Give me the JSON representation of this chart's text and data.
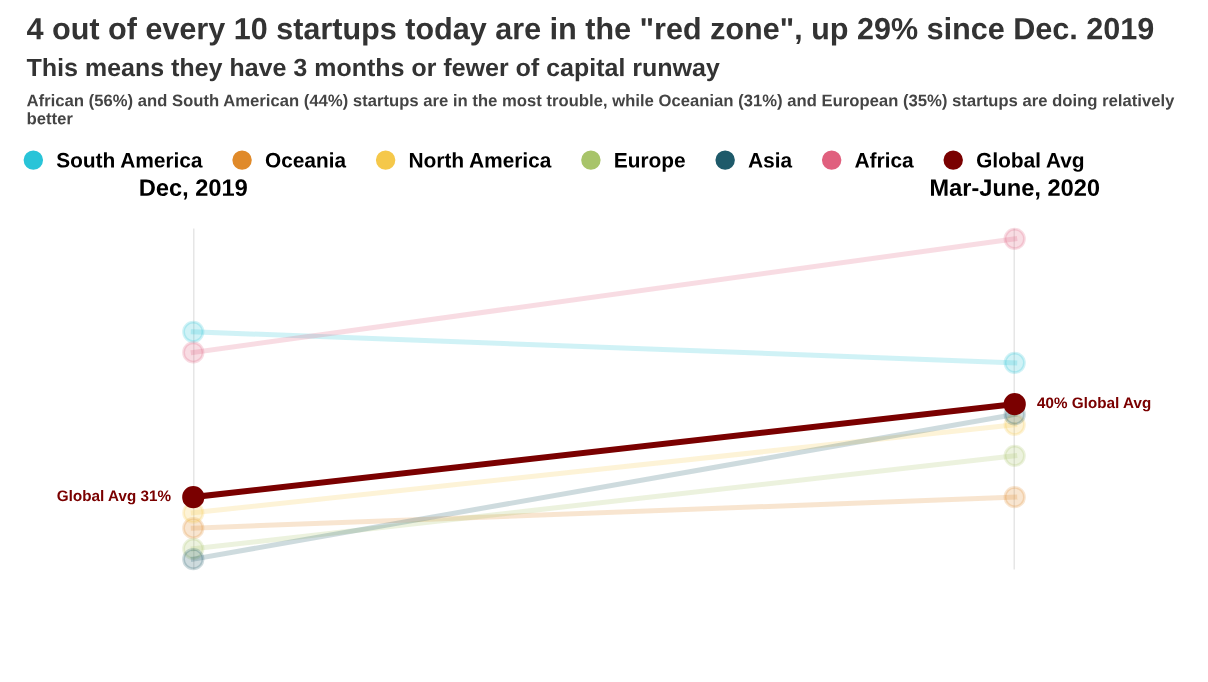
{
  "chart_data": {
    "type": "line",
    "title": "4 out of every 10 startups today are in the \"red zone\", up 29% since Dec. 2019",
    "subtitle": "This means they have 3 months or fewer of capital runway",
    "annotations": [
      "African (56%) and South American (44%) startups are in the most trouble, while Oceanian (31%) and European (35%) startups are doing relatively better"
    ],
    "categories": [
      "Dec, 2019",
      "Mar-June, 2020"
    ],
    "ylim": [
      24,
      57
    ],
    "grid": "x",
    "legend": "top left",
    "marker": "circle",
    "tick_labels": "x",
    "series": [
      {
        "name": "South America",
        "color": "#29c4d8",
        "values": [
          47,
          44
        ]
      },
      {
        "name": "Oceania",
        "color": "#e08a2a",
        "values": [
          28,
          31
        ]
      },
      {
        "name": "North America",
        "color": "#f5c84a",
        "values": [
          29.5,
          38
        ]
      },
      {
        "name": "Europe",
        "color": "#a8c46a",
        "values": [
          26,
          35
        ]
      },
      {
        "name": "Asia",
        "color": "#1e5a6a",
        "values": [
          25,
          39
        ]
      },
      {
        "name": "Africa",
        "color": "#e0607e",
        "values": [
          45,
          56
        ]
      },
      {
        "name": "Global Avg",
        "color": "#7a0000",
        "values": [
          31,
          40
        ],
        "value_labels": [
          "Global Avg 31%",
          "40% Global Avg"
        ]
      }
    ]
  }
}
